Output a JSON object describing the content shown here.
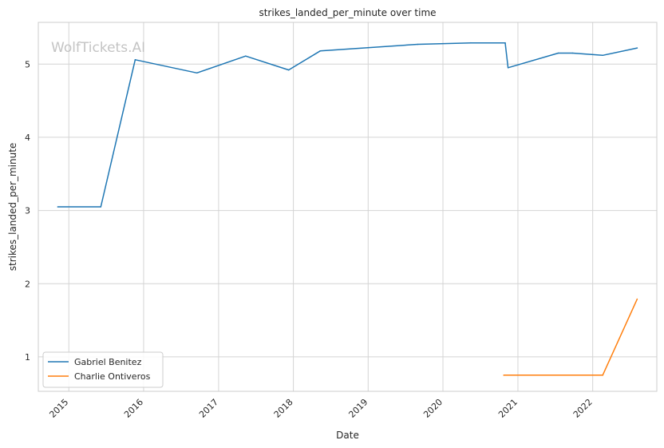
{
  "chart_data": {
    "type": "line",
    "title": "strikes_landed_per_minute over time",
    "xlabel": "Date",
    "ylabel": "strikes_landed_per_minute",
    "watermark": "WolfTickets.AI",
    "x_ticks": [
      "2015",
      "2016",
      "2017",
      "2018",
      "2019",
      "2020",
      "2021",
      "2022"
    ],
    "y_ticks": [
      "1",
      "2",
      "3",
      "4",
      "5"
    ],
    "xlim": [
      "2014-08-05",
      "2022-11-10"
    ],
    "ylim": [
      0.53,
      5.57
    ],
    "grid": true,
    "legend_position": "lower-left",
    "series": [
      {
        "name": "Gabriel Benitez",
        "color": "#1f77b4",
        "points": [
          {
            "x": "2014-11-08",
            "y": 3.05
          },
          {
            "x": "2015-06-06",
            "y": 3.05
          },
          {
            "x": "2015-11-21",
            "y": 5.06
          },
          {
            "x": "2016-09-17",
            "y": 4.88
          },
          {
            "x": "2017-05-13",
            "y": 5.11
          },
          {
            "x": "2017-12-09",
            "y": 4.92
          },
          {
            "x": "2018-05-12",
            "y": 5.18
          },
          {
            "x": "2019-08-31",
            "y": 5.27
          },
          {
            "x": "2020-05-16",
            "y": 5.29
          },
          {
            "x": "2020-10-31",
            "y": 5.29
          },
          {
            "x": "2020-11-14",
            "y": 4.95
          },
          {
            "x": "2021-07-17",
            "y": 5.15
          },
          {
            "x": "2021-09-25",
            "y": 5.15
          },
          {
            "x": "2022-02-19",
            "y": 5.12
          },
          {
            "x": "2022-08-06",
            "y": 5.22
          }
        ]
      },
      {
        "name": "Charlie Ontiveros",
        "color": "#ff7f0e",
        "points": [
          {
            "x": "2020-10-24",
            "y": 0.75
          },
          {
            "x": "2022-02-19",
            "y": 0.75
          },
          {
            "x": "2022-08-06",
            "y": 1.79
          }
        ]
      }
    ]
  }
}
